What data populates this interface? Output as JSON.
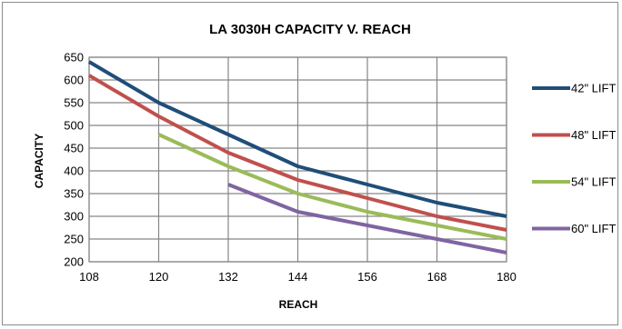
{
  "chart_data": {
    "type": "line",
    "title": "LA 3030H CAPACITY V. REACH",
    "xlabel": "REACH",
    "ylabel": "CAPACITY",
    "xlim": [
      108,
      180
    ],
    "ylim": [
      200,
      650
    ],
    "x_ticks": [
      108,
      120,
      132,
      144,
      156,
      168,
      180
    ],
    "y_ticks": [
      200,
      250,
      300,
      350,
      400,
      450,
      500,
      550,
      600,
      650
    ],
    "grid": true,
    "legend_position": "right",
    "series": [
      {
        "name": "42\" LIFT",
        "color": "#1f4e79",
        "x": [
          108,
          120,
          132,
          144,
          156,
          168,
          180
        ],
        "y": [
          640,
          550,
          480,
          410,
          370,
          330,
          300
        ]
      },
      {
        "name": "48\" LIFT",
        "color": "#c0504d",
        "x": [
          108,
          120,
          132,
          144,
          156,
          168,
          180
        ],
        "y": [
          610,
          520,
          440,
          380,
          340,
          300,
          270
        ]
      },
      {
        "name": "54\" LIFT",
        "color": "#9bbb59",
        "x": [
          120,
          132,
          144,
          156,
          168,
          180
        ],
        "y": [
          480,
          410,
          350,
          310,
          280,
          250
        ]
      },
      {
        "name": "60\" LIFT",
        "color": "#8064a2",
        "x": [
          132,
          144,
          156,
          168,
          180
        ],
        "y": [
          370,
          310,
          280,
          250,
          220
        ]
      }
    ]
  }
}
